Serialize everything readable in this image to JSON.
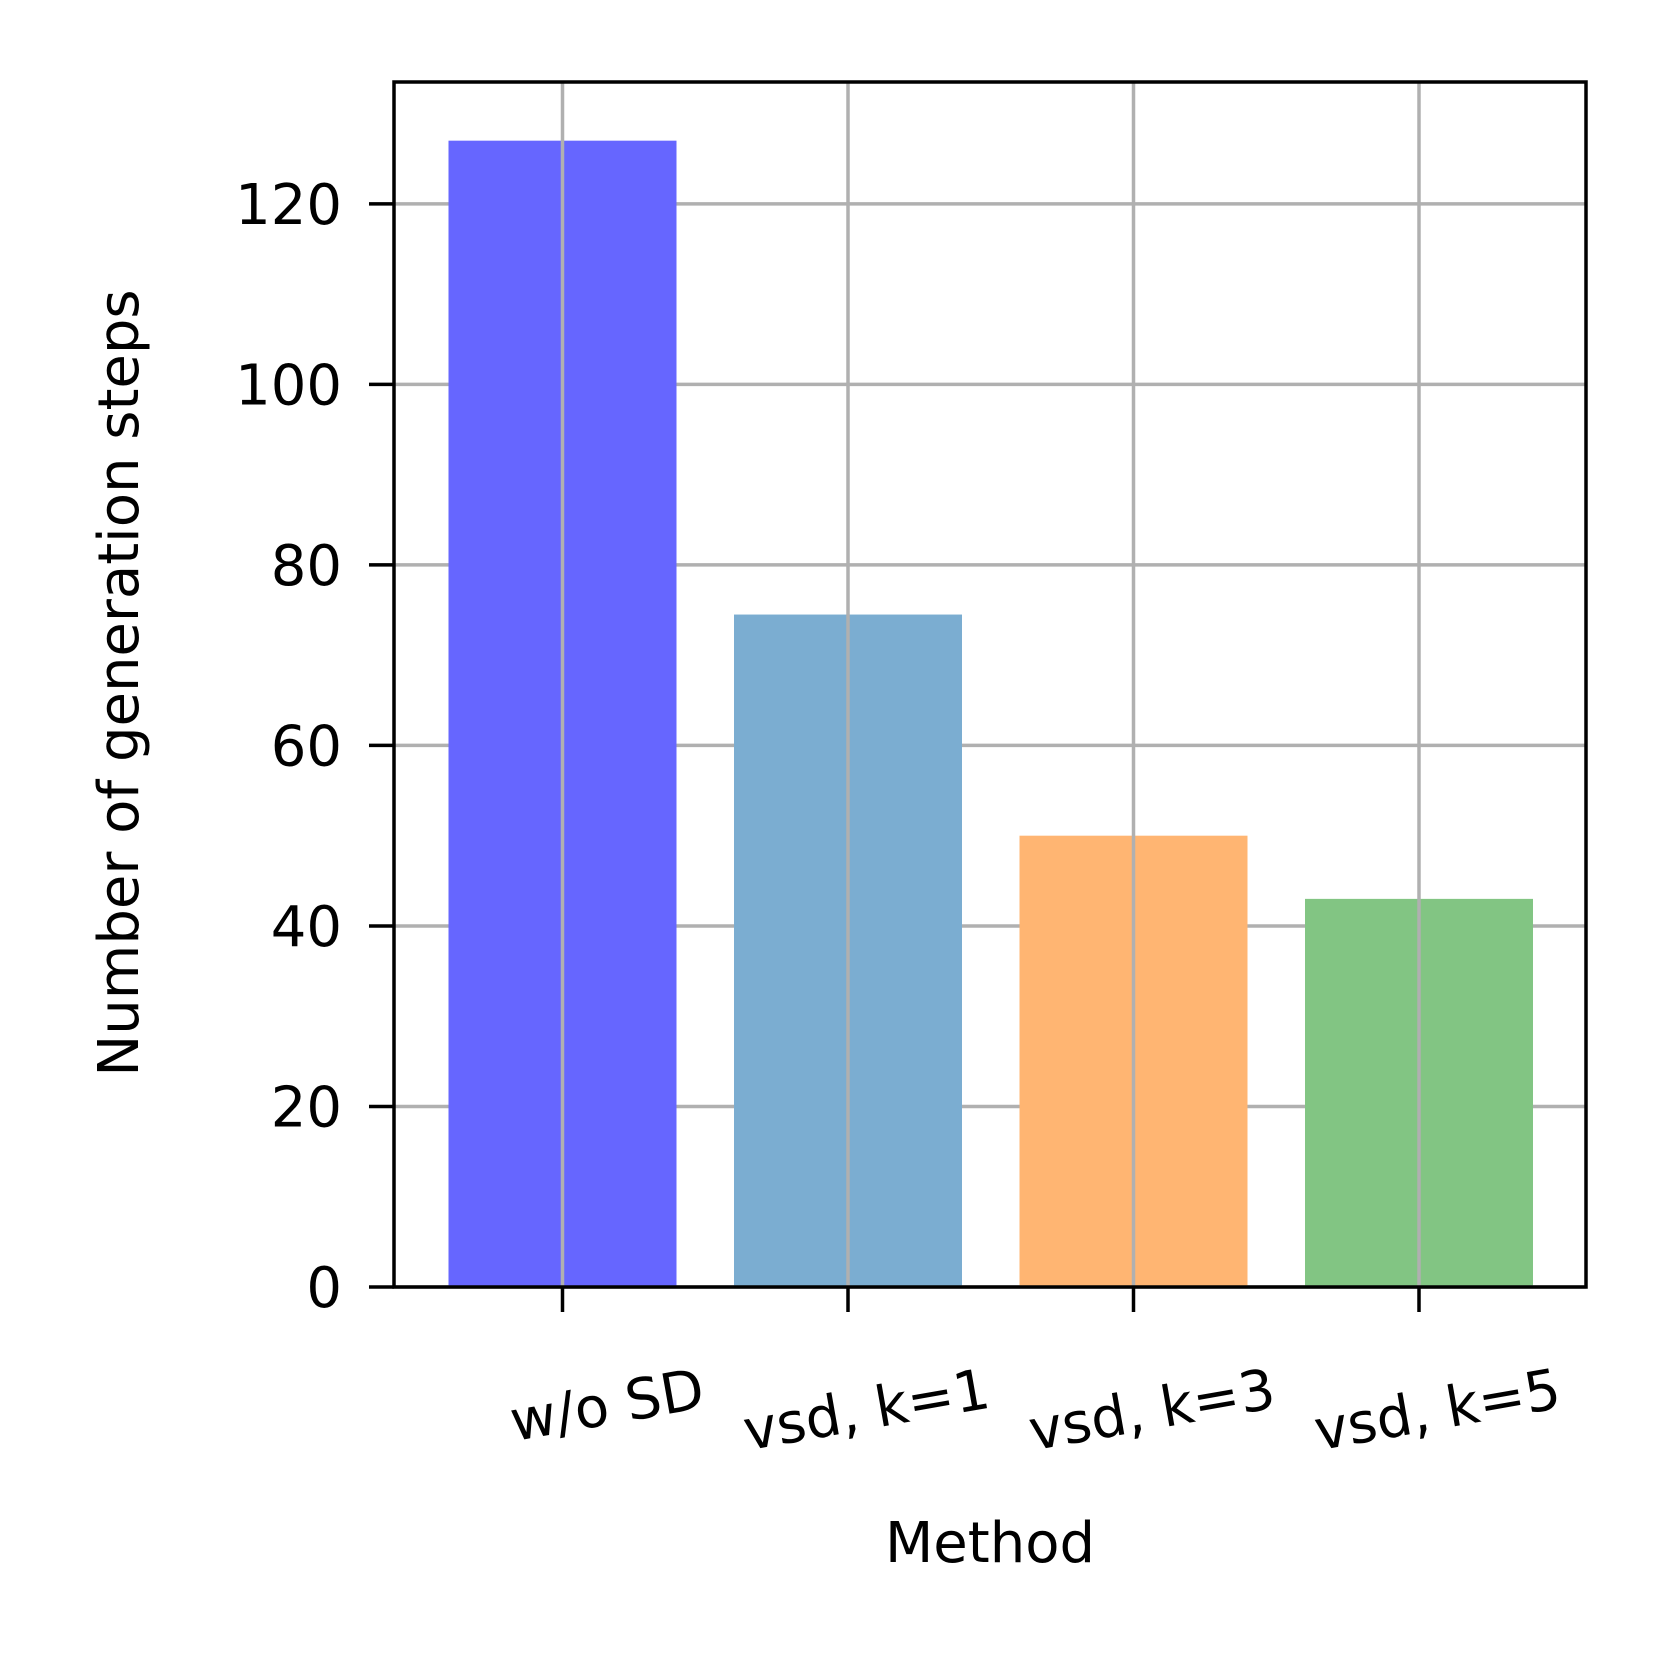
{
  "chart_data": {
    "type": "bar",
    "title": "",
    "xlabel": "Method",
    "ylabel": "Number of generation steps",
    "categories": [
      "w/o SD",
      "vsd, k=1",
      "vsd, k=3",
      "vsd, k=5"
    ],
    "values": [
      127,
      74.5,
      50,
      43
    ],
    "bar_colors": [
      "#6666ff",
      "#7badd1",
      "#ffb572",
      "#82c583"
    ],
    "ylim": [
      0,
      133.5
    ],
    "yticks": [
      0,
      20,
      40,
      60,
      80,
      100,
      120
    ],
    "grid": true,
    "grid_color": "#b0b0b0",
    "x_tick_rotation_deg": -10
  }
}
